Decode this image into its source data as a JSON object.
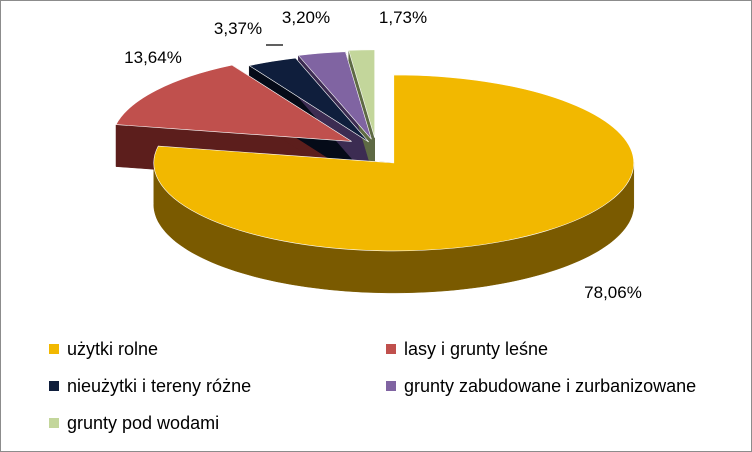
{
  "chart_data": {
    "type": "pie",
    "style": "3d-exploded",
    "title": "",
    "slices": [
      {
        "name": "użytki rolne",
        "value": 78.06,
        "label": "78,06%",
        "color": "#F2B800",
        "side_color": "#7A5A00"
      },
      {
        "name": "lasy i grunty leśne",
        "value": 13.64,
        "label": "13,64%",
        "color": "#C0504D",
        "side_color": "#5C1E1C"
      },
      {
        "name": "nieużytki i tereny różne",
        "value": 3.37,
        "label": "3,37%",
        "color": "#0F1E3C",
        "side_color": "#050B18"
      },
      {
        "name": "grunty zabudowane i zurbanizowane",
        "value": 3.2,
        "label": "3,20%",
        "color": "#8064A2",
        "side_color": "#3C2C52"
      },
      {
        "name": "grunty pod wodami",
        "value": 1.73,
        "label": "1,73%",
        "color": "#C3D69B",
        "side_color": "#5E6A44"
      }
    ],
    "legend_position": "bottom"
  }
}
